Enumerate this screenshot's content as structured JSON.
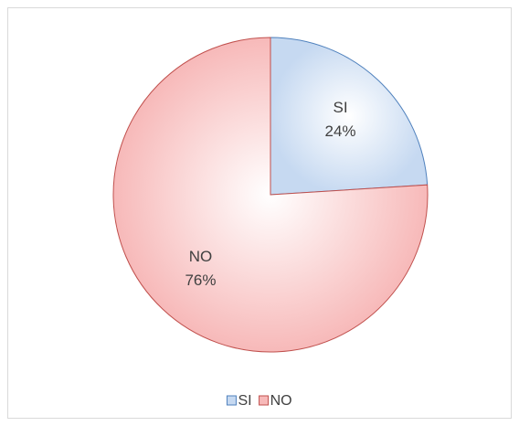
{
  "chart_data": {
    "type": "pie",
    "categories": [
      "SI",
      "NO"
    ],
    "values": [
      24,
      76
    ],
    "value_labels": [
      "24%",
      "76%"
    ],
    "colors": [
      "#c6d9f1",
      "#f7b9b9"
    ],
    "edge_colors": [
      "#4f81bd",
      "#c0504d"
    ],
    "legend": "bottom"
  }
}
